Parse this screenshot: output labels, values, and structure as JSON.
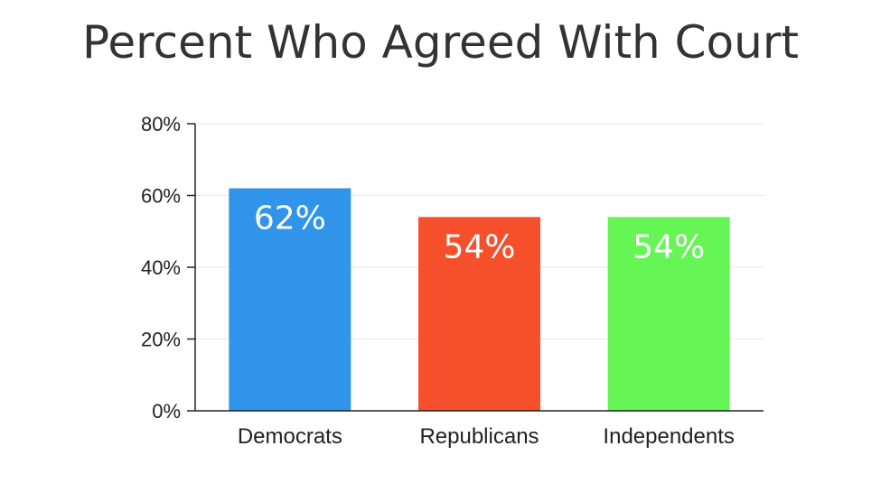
{
  "chart_data": {
    "type": "bar",
    "title": "Percent Who Agreed With Court",
    "xlabel": "",
    "ylabel": "",
    "categories": [
      "Democrats",
      "Republicans",
      "Independents"
    ],
    "values": [
      62,
      54,
      54
    ],
    "data_labels": [
      "62%",
      "54%",
      "54%"
    ],
    "bar_colors": [
      "#3094ea",
      "#f5502b",
      "#65f555"
    ],
    "ylim": [
      0,
      80
    ],
    "yticks": [
      0,
      20,
      40,
      60,
      80
    ],
    "ytick_labels": [
      "0%",
      "20%",
      "40%",
      "60%",
      "80%"
    ],
    "grid": true,
    "legend": "none"
  }
}
